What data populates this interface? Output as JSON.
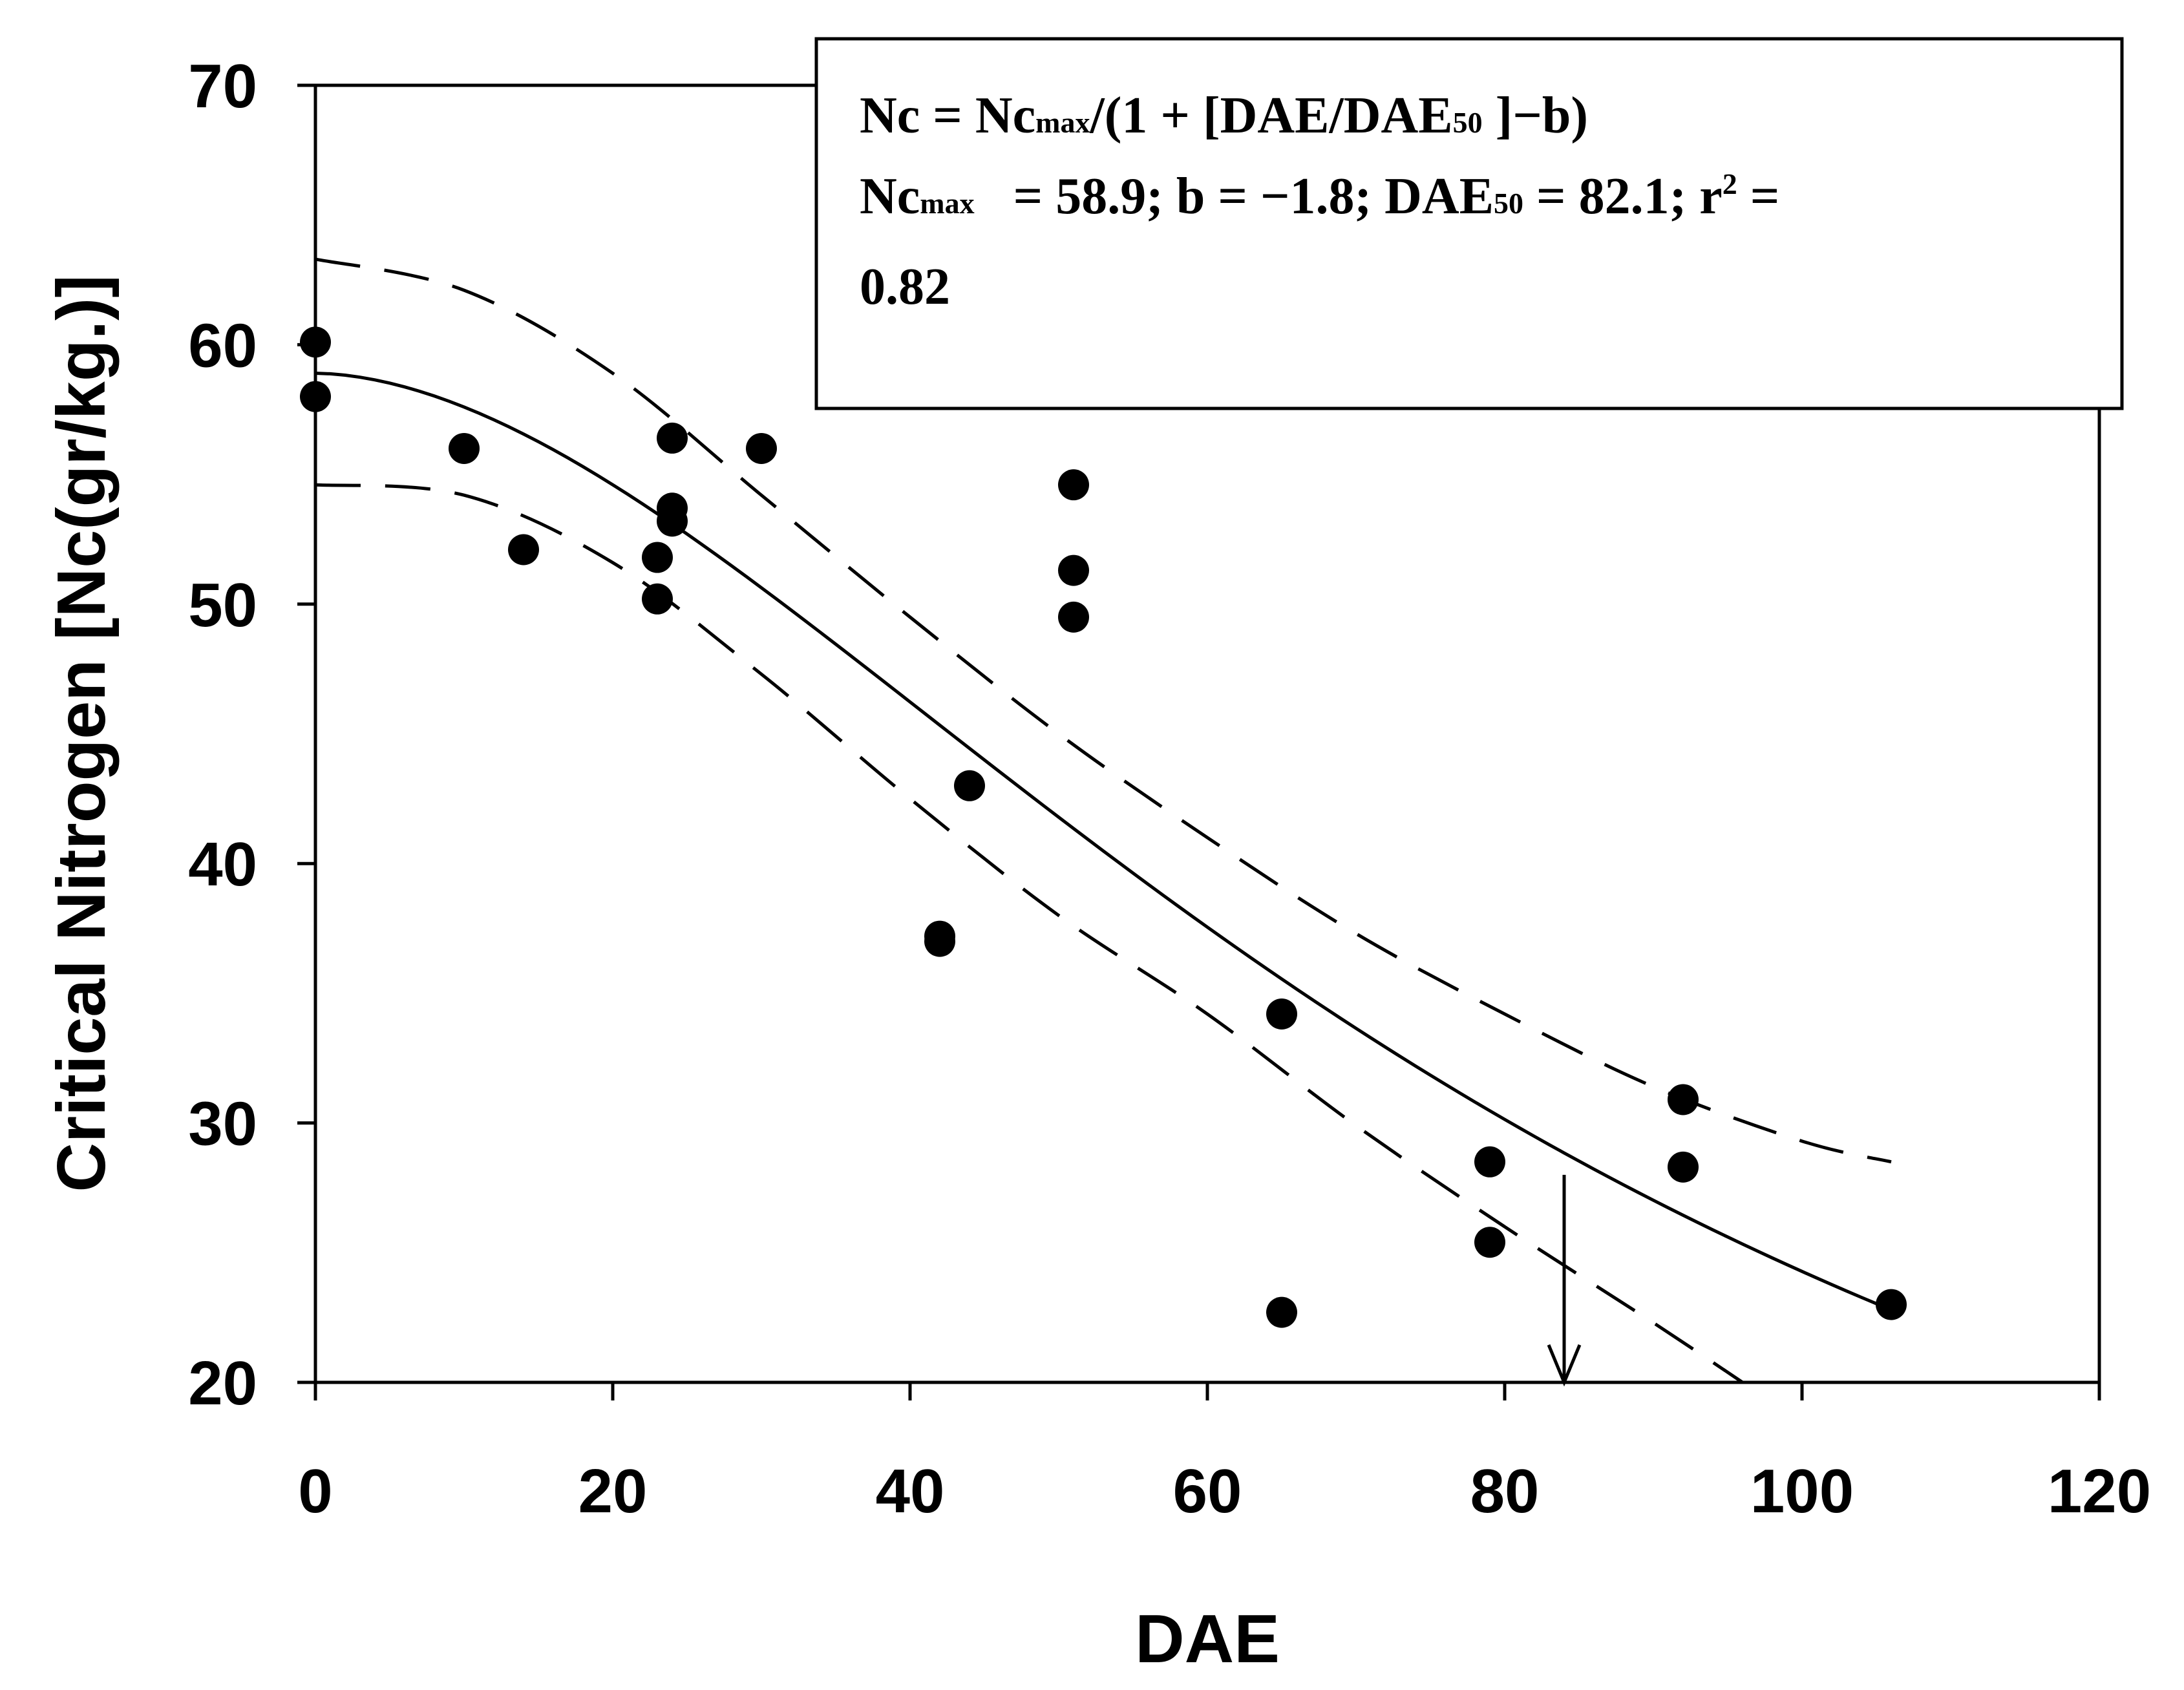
{
  "chart_data": {
    "type": "scatter",
    "title": "",
    "xlabel": "DAE",
    "ylabel": "Critical Nitrogen [Nc(gr/kg.)]",
    "xlim": [
      0,
      120
    ],
    "ylim": [
      20,
      70
    ],
    "x_ticks": [
      "0",
      "20",
      "40",
      "60",
      "80",
      "100",
      "120"
    ],
    "y_ticks": [
      "20",
      "30",
      "40",
      "50",
      "60",
      "70"
    ],
    "grid": false,
    "points": [
      {
        "x": 0,
        "y": 60.1
      },
      {
        "x": 0,
        "y": 58.0
      },
      {
        "x": 10,
        "y": 56.0
      },
      {
        "x": 14,
        "y": 52.1
      },
      {
        "x": 23,
        "y": 51.8
      },
      {
        "x": 23,
        "y": 50.2
      },
      {
        "x": 24,
        "y": 56.4
      },
      {
        "x": 24,
        "y": 53.7
      },
      {
        "x": 24,
        "y": 53.2
      },
      {
        "x": 30,
        "y": 56.0
      },
      {
        "x": 42,
        "y": 37.2
      },
      {
        "x": 42,
        "y": 37.0
      },
      {
        "x": 44,
        "y": 43.0
      },
      {
        "x": 51,
        "y": 54.6
      },
      {
        "x": 51,
        "y": 51.3
      },
      {
        "x": 51,
        "y": 49.5
      },
      {
        "x": 65,
        "y": 34.2
      },
      {
        "x": 65,
        "y": 22.7
      },
      {
        "x": 79,
        "y": 28.5
      },
      {
        "x": 79,
        "y": 25.4
      },
      {
        "x": 92,
        "y": 30.9
      },
      {
        "x": 92,
        "y": 28.3
      },
      {
        "x": 106,
        "y": 23.0
      }
    ],
    "fit": {
      "Ncmax": 58.9,
      "b": -1.8,
      "DAE50": 82.1,
      "r2": 0.82,
      "x_range": [
        0,
        106
      ]
    },
    "confidence_bands": [
      {
        "name": "upper",
        "x": [
          0,
          10,
          20,
          30,
          40,
          50,
          60,
          70,
          80,
          90,
          100,
          106
        ],
        "y": [
          63.3,
          62.1,
          58.9,
          54.2,
          49.5,
          45.0,
          41.0,
          37.3,
          34.2,
          31.4,
          29.3,
          28.5
        ]
      },
      {
        "name": "lower",
        "x": [
          0,
          10,
          20,
          30,
          40,
          50,
          60,
          70,
          80,
          90,
          96
        ],
        "y": [
          54.6,
          54.2,
          51.6,
          47.3,
          42.5,
          38.0,
          34.2,
          29.9,
          26.0,
          22.3,
          20.0
        ]
      }
    ],
    "annotation_arrow": {
      "x": 84,
      "y_from": 28,
      "y_to": 20
    },
    "equation": {
      "line1": {
        "a": "Nc = Nc",
        "sub1": "max",
        "b": "/(1 + [DAE/DAE",
        "sub2": "50",
        "c": " ]−b)"
      },
      "line2": {
        "a": "Nc",
        "sub1": "max",
        "b": "   = 58.9; b = −1.8; DAE",
        "sub2": "50",
        "c": " = 82.1; r",
        "sup": "2",
        "d": " ="
      },
      "line3": "0.82"
    }
  }
}
